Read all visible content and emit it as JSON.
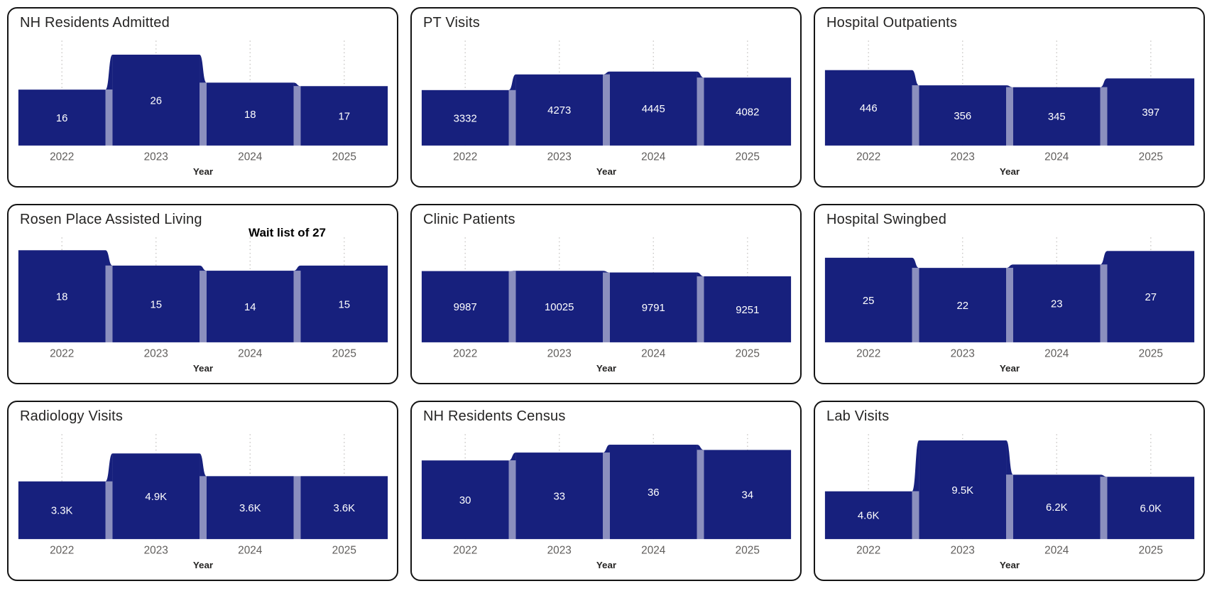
{
  "page": {
    "background": "#ffffff"
  },
  "style": {
    "bar_color": "#17207D",
    "ribbon_opacity": 0.5,
    "grid_color": "#C8C6C4",
    "title_color": "#252423",
    "tick_color": "#605E5C",
    "axis_title_color": "#252423",
    "data_label_color": "#FFFFFF",
    "card_border_color": "#141414",
    "annotation_color": "#000000"
  },
  "chart_data": [
    {
      "type": "bar",
      "title": "NH Residents Admitted",
      "categories": [
        "2022",
        "2023",
        "2024",
        "2025"
      ],
      "values": [
        16,
        26,
        18,
        17
      ],
      "labels": [
        "16",
        "26",
        "18",
        "17"
      ],
      "xlabel": "Year",
      "ylabel": "",
      "ylim": [
        0,
        30
      ],
      "grid": "vertical-dotted",
      "legend": "none"
    },
    {
      "type": "bar",
      "title": "PT Visits",
      "categories": [
        "2022",
        "2023",
        "2024",
        "2025"
      ],
      "values": [
        3332,
        4273,
        4445,
        4082
      ],
      "labels": [
        "3332",
        "4273",
        "4445",
        "4082"
      ],
      "xlabel": "Year",
      "ylabel": "",
      "ylim": [
        0,
        6300
      ],
      "grid": "vertical-dotted",
      "legend": "none"
    },
    {
      "type": "bar",
      "title": "Hospital Outpatients",
      "categories": [
        "2022",
        "2023",
        "2024",
        "2025"
      ],
      "values": [
        446,
        356,
        345,
        397
      ],
      "labels": [
        "446",
        "356",
        "345",
        "397"
      ],
      "xlabel": "Year",
      "ylabel": "",
      "ylim": [
        0,
        620
      ],
      "grid": "vertical-dotted",
      "legend": "none"
    },
    {
      "type": "bar",
      "title": "Rosen Place Assisted Living",
      "annotation": "Wait list of 27",
      "categories": [
        "2022",
        "2023",
        "2024",
        "2025"
      ],
      "values": [
        18,
        15,
        14,
        15
      ],
      "labels": [
        "18",
        "15",
        "14",
        "15"
      ],
      "xlabel": "Year",
      "ylabel": "",
      "ylim": [
        0,
        20.5
      ],
      "grid": "vertical-dotted",
      "legend": "none"
    },
    {
      "type": "bar",
      "title": "Clinic Patients",
      "categories": [
        "2022",
        "2023",
        "2024",
        "2025"
      ],
      "values": [
        9987,
        10025,
        9791,
        9251
      ],
      "labels": [
        "9987",
        "10025",
        "9791",
        "9251"
      ],
      "xlabel": "Year",
      "ylabel": "",
      "ylim": [
        0,
        14700
      ],
      "grid": "vertical-dotted",
      "legend": "none"
    },
    {
      "type": "bar",
      "title": "Hospital Swingbed",
      "categories": [
        "2022",
        "2023",
        "2024",
        "2025"
      ],
      "values": [
        25,
        22,
        23,
        27
      ],
      "labels": [
        "25",
        "22",
        "23",
        "27"
      ],
      "xlabel": "Year",
      "ylabel": "",
      "ylim": [
        0,
        31
      ],
      "grid": "vertical-dotted",
      "legend": "none"
    },
    {
      "type": "bar",
      "title": "Radiology Visits",
      "categories": [
        "2022",
        "2023",
        "2024",
        "2025"
      ],
      "values": [
        3300,
        4900,
        3600,
        3600
      ],
      "labels": [
        "3.3K",
        "4.9K",
        "3.6K",
        "3.6K"
      ],
      "xlabel": "Year",
      "ylabel": "",
      "ylim": [
        0,
        6000
      ],
      "grid": "vertical-dotted",
      "legend": "none"
    },
    {
      "type": "bar",
      "title": "NH Residents Census",
      "categories": [
        "2022",
        "2023",
        "2024",
        "2025"
      ],
      "values": [
        30,
        33,
        36,
        34
      ],
      "labels": [
        "30",
        "33",
        "36",
        "34"
      ],
      "xlabel": "Year",
      "ylabel": "",
      "ylim": [
        0,
        40
      ],
      "grid": "vertical-dotted",
      "legend": "none"
    },
    {
      "type": "bar",
      "title": "Lab Visits",
      "categories": [
        "2022",
        "2023",
        "2024",
        "2025"
      ],
      "values": [
        4600,
        9500,
        6200,
        6000
      ],
      "labels": [
        "4.6K",
        "9.5K",
        "6.2K",
        "6.0K"
      ],
      "xlabel": "Year",
      "ylabel": "",
      "ylim": [
        0,
        10100
      ],
      "grid": "vertical-dotted",
      "legend": "none"
    }
  ]
}
